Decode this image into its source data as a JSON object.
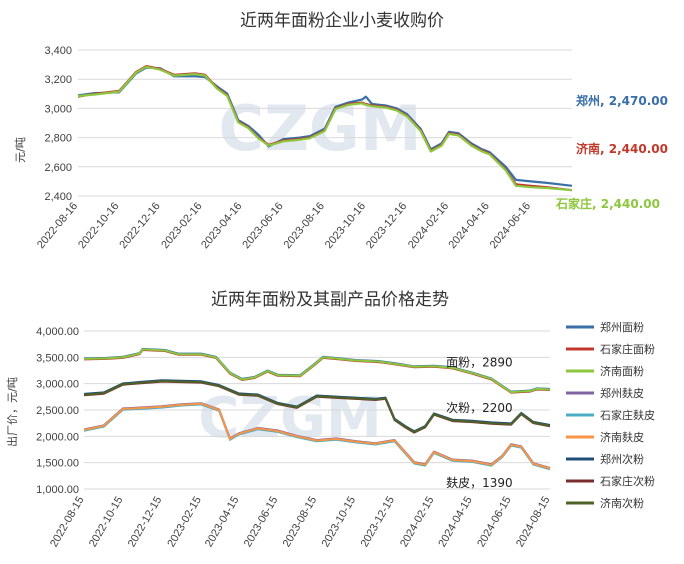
{
  "chart_data": [
    {
      "type": "line",
      "title": "近两年面粉企业小麦收购价",
      "ylabel": "元/吨",
      "ylim": [
        2400,
        3400
      ],
      "yticks": [
        "2,400",
        "2,600",
        "2,800",
        "3,000",
        "3,200",
        "3,400"
      ],
      "yticks_values": [
        2400,
        2600,
        2800,
        3000,
        3200,
        3400
      ],
      "categories": [
        "2022-08-16",
        "2022-10-16",
        "2022-12-16",
        "2023-02-16",
        "2023-04-16",
        "2023-06-16",
        "2023-08-16",
        "2023-10-16",
        "2023-12-16",
        "2024-02-16",
        "2024-04-16",
        "2024-06-16"
      ],
      "x_end": "2024-08-16",
      "watermark": "CZGM",
      "series": [
        {
          "name": "郑州",
          "end_label": "郑州, 2,470.00",
          "color": "#3a6fa8",
          "points": [
            [
              "2022-08-16",
              3090
            ],
            [
              "2022-09-10",
              3105
            ],
            [
              "2022-10-16",
              3110
            ],
            [
              "2022-11-10",
              3240
            ],
            [
              "2022-11-25",
              3280
            ],
            [
              "2022-12-16",
              3275
            ],
            [
              "2023-01-05",
              3220
            ],
            [
              "2023-02-05",
              3220
            ],
            [
              "2023-02-20",
              3215
            ],
            [
              "2023-03-10",
              3150
            ],
            [
              "2023-03-25",
              3100
            ],
            [
              "2023-04-10",
              2920
            ],
            [
              "2023-04-25",
              2880
            ],
            [
              "2023-05-10",
              2820
            ],
            [
              "2023-05-25",
              2740
            ],
            [
              "2023-06-16",
              2790
            ],
            [
              "2023-07-10",
              2800
            ],
            [
              "2023-07-25",
              2810
            ],
            [
              "2023-08-16",
              2860
            ],
            [
              "2023-09-01",
              3010
            ],
            [
              "2023-09-20",
              3040
            ],
            [
              "2023-10-10",
              3060
            ],
            [
              "2023-10-16",
              3080
            ],
            [
              "2023-10-25",
              3030
            ],
            [
              "2023-11-15",
              3020
            ],
            [
              "2023-12-01",
              3000
            ],
            [
              "2023-12-16",
              2960
            ],
            [
              "2024-01-05",
              2860
            ],
            [
              "2024-01-20",
              2720
            ],
            [
              "2024-02-05",
              2760
            ],
            [
              "2024-02-16",
              2840
            ],
            [
              "2024-03-01",
              2830
            ],
            [
              "2024-03-20",
              2760
            ],
            [
              "2024-04-05",
              2720
            ],
            [
              "2024-04-16",
              2700
            ],
            [
              "2024-05-10",
              2600
            ],
            [
              "2024-05-25",
              2510
            ],
            [
              "2024-06-16",
              2500
            ],
            [
              "2024-07-10",
              2490
            ],
            [
              "2024-08-16",
              2470
            ]
          ]
        },
        {
          "name": "济南",
          "end_label": "济南, 2,440.00",
          "color": "#c0392b",
          "points": [
            [
              "2022-08-16",
              3080
            ],
            [
              "2022-09-10",
              3100
            ],
            [
              "2022-10-16",
              3120
            ],
            [
              "2022-11-10",
              3250
            ],
            [
              "2022-11-25",
              3290
            ],
            [
              "2022-12-16",
              3270
            ],
            [
              "2023-01-05",
              3230
            ],
            [
              "2023-02-05",
              3240
            ],
            [
              "2023-02-20",
              3230
            ],
            [
              "2023-03-10",
              3140
            ],
            [
              "2023-03-25",
              3090
            ],
            [
              "2023-04-10",
              2910
            ],
            [
              "2023-04-25",
              2870
            ],
            [
              "2023-05-10",
              2800
            ],
            [
              "2023-05-25",
              2750
            ],
            [
              "2023-06-16",
              2780
            ],
            [
              "2023-07-10",
              2790
            ],
            [
              "2023-07-25",
              2800
            ],
            [
              "2023-08-16",
              2850
            ],
            [
              "2023-09-01",
              3000
            ],
            [
              "2023-09-20",
              3030
            ],
            [
              "2023-10-10",
              3040
            ],
            [
              "2023-10-16",
              3030
            ],
            [
              "2023-10-25",
              3020
            ],
            [
              "2023-11-15",
              3010
            ],
            [
              "2023-12-01",
              2990
            ],
            [
              "2023-12-16",
              2950
            ],
            [
              "2024-01-05",
              2850
            ],
            [
              "2024-01-20",
              2710
            ],
            [
              "2024-02-05",
              2750
            ],
            [
              "2024-02-16",
              2830
            ],
            [
              "2024-03-01",
              2820
            ],
            [
              "2024-03-20",
              2750
            ],
            [
              "2024-04-05",
              2710
            ],
            [
              "2024-04-16",
              2690
            ],
            [
              "2024-05-10",
              2580
            ],
            [
              "2024-05-25",
              2480
            ],
            [
              "2024-06-16",
              2470
            ],
            [
              "2024-07-10",
              2460
            ],
            [
              "2024-08-16",
              2440
            ]
          ]
        },
        {
          "name": "石家庄",
          "end_label": "石家庄, 2,440.00",
          "color": "#8dc63f",
          "points": [
            [
              "2022-08-16",
              3085
            ],
            [
              "2022-09-10",
              3095
            ],
            [
              "2022-10-16",
              3115
            ],
            [
              "2022-11-10",
              3245
            ],
            [
              "2022-11-25",
              3285
            ],
            [
              "2022-12-16",
              3265
            ],
            [
              "2023-01-05",
              3225
            ],
            [
              "2023-02-05",
              3235
            ],
            [
              "2023-02-20",
              3225
            ],
            [
              "2023-03-10",
              3135
            ],
            [
              "2023-03-25",
              3085
            ],
            [
              "2023-04-10",
              2905
            ],
            [
              "2023-04-25",
              2865
            ],
            [
              "2023-05-10",
              2795
            ],
            [
              "2023-05-25",
              2745
            ],
            [
              "2023-06-16",
              2775
            ],
            [
              "2023-07-10",
              2785
            ],
            [
              "2023-07-25",
              2795
            ],
            [
              "2023-08-16",
              2845
            ],
            [
              "2023-09-01",
              2995
            ],
            [
              "2023-09-20",
              3025
            ],
            [
              "2023-10-10",
              3035
            ],
            [
              "2023-10-16",
              3025
            ],
            [
              "2023-10-25",
              3015
            ],
            [
              "2023-11-15",
              3005
            ],
            [
              "2023-12-01",
              2985
            ],
            [
              "2023-12-16",
              2945
            ],
            [
              "2024-01-05",
              2845
            ],
            [
              "2024-01-20",
              2705
            ],
            [
              "2024-02-05",
              2745
            ],
            [
              "2024-02-16",
              2825
            ],
            [
              "2024-03-01",
              2815
            ],
            [
              "2024-03-20",
              2745
            ],
            [
              "2024-04-05",
              2705
            ],
            [
              "2024-04-16",
              2685
            ],
            [
              "2024-05-10",
              2575
            ],
            [
              "2024-05-25",
              2470
            ],
            [
              "2024-06-16",
              2460
            ],
            [
              "2024-07-10",
              2455
            ],
            [
              "2024-08-16",
              2440
            ]
          ]
        }
      ]
    },
    {
      "type": "line",
      "title": "近两年面粉及其副产品价格走势",
      "ylabel": "出厂价，元/吨",
      "ylim": [
        1000,
        4000
      ],
      "yticks": [
        "1,000.00",
        "1,500.00",
        "2,000.00",
        "2,500.00",
        "3,000.00",
        "3,500.00",
        "4,000.00"
      ],
      "yticks_values": [
        1000,
        1500,
        2000,
        2500,
        3000,
        3500,
        4000
      ],
      "categories": [
        "2022-08-15",
        "2022-10-15",
        "2022-12-15",
        "2023-02-15",
        "2023-04-15",
        "2023-06-15",
        "2023-08-15",
        "2023-10-15",
        "2023-12-15",
        "2024-02-15",
        "2024-04-15",
        "2024-06-15",
        "2024-08-15"
      ],
      "watermark": "CZGM",
      "annotations": [
        {
          "text": "面粉，2890",
          "date": "2024-03-05",
          "value": 3330
        },
        {
          "text": "次粉，2200",
          "date": "2024-03-05",
          "value": 2460
        },
        {
          "text": "麸皮，1390",
          "date": "2024-03-05",
          "value": 1040
        }
      ],
      "series": [
        {
          "name": "郑州面粉",
          "color": "#3a6fa8",
          "group": "flour",
          "offset": 10
        },
        {
          "name": "石家庄面粉",
          "color": "#c0392b",
          "group": "flour",
          "offset": -10
        },
        {
          "name": "济南面粉",
          "color": "#8dc63f",
          "group": "flour",
          "offset": 0
        },
        {
          "name": "郑州麸皮",
          "color": "#8064a2",
          "group": "bran",
          "offset": 10
        },
        {
          "name": "石家庄麸皮",
          "color": "#4bacc6",
          "group": "bran",
          "offset": -15
        },
        {
          "name": "济南麸皮",
          "color": "#f79646",
          "group": "bran",
          "offset": 0
        },
        {
          "name": "郑州次粉",
          "color": "#1f4e79",
          "group": "second",
          "offset": 15
        },
        {
          "name": "石家庄次粉",
          "color": "#7b2c2c",
          "group": "second",
          "offset": -10
        },
        {
          "name": "济南次粉",
          "color": "#4f6228",
          "group": "second",
          "offset": 0
        }
      ],
      "group_points": {
        "flour": [
          [
            "2022-08-15",
            3470
          ],
          [
            "2022-09-20",
            3480
          ],
          [
            "2022-10-15",
            3500
          ],
          [
            "2022-11-10",
            3570
          ],
          [
            "2022-11-15",
            3650
          ],
          [
            "2022-12-20",
            3630
          ],
          [
            "2023-01-10",
            3560
          ],
          [
            "2023-02-15",
            3560
          ],
          [
            "2023-03-10",
            3500
          ],
          [
            "2023-04-01",
            3200
          ],
          [
            "2023-04-20",
            3080
          ],
          [
            "2023-05-10",
            3120
          ],
          [
            "2023-05-30",
            3240
          ],
          [
            "2023-06-15",
            3160
          ],
          [
            "2023-07-20",
            3150
          ],
          [
            "2023-08-10",
            3350
          ],
          [
            "2023-08-25",
            3500
          ],
          [
            "2023-09-20",
            3470
          ],
          [
            "2023-10-15",
            3440
          ],
          [
            "2023-11-20",
            3420
          ],
          [
            "2023-12-15",
            3380
          ],
          [
            "2024-01-15",
            3320
          ],
          [
            "2024-02-15",
            3330
          ],
          [
            "2024-03-15",
            3300
          ],
          [
            "2024-04-15",
            3200
          ],
          [
            "2024-05-15",
            3090
          ],
          [
            "2024-06-01",
            2950
          ],
          [
            "2024-06-15",
            2840
          ],
          [
            "2024-07-15",
            2860
          ],
          [
            "2024-07-25",
            2900
          ],
          [
            "2024-08-15",
            2890
          ]
        ],
        "second": [
          [
            "2022-08-15",
            2790
          ],
          [
            "2022-09-15",
            2820
          ],
          [
            "2022-10-15",
            2990
          ],
          [
            "2022-11-15",
            3020
          ],
          [
            "2022-12-15",
            3050
          ],
          [
            "2023-01-15",
            3040
          ],
          [
            "2023-02-15",
            3030
          ],
          [
            "2023-03-15",
            2960
          ],
          [
            "2023-04-15",
            2800
          ],
          [
            "2023-05-15",
            2780
          ],
          [
            "2023-06-15",
            2620
          ],
          [
            "2023-07-15",
            2550
          ],
          [
            "2023-08-15",
            2760
          ],
          [
            "2023-09-15",
            2740
          ],
          [
            "2023-10-15",
            2720
          ],
          [
            "2023-11-15",
            2700
          ],
          [
            "2023-12-01",
            2720
          ],
          [
            "2023-12-15",
            2320
          ],
          [
            "2024-01-01",
            2180
          ],
          [
            "2024-01-15",
            2080
          ],
          [
            "2024-02-01",
            2180
          ],
          [
            "2024-02-15",
            2420
          ],
          [
            "2024-03-15",
            2300
          ],
          [
            "2024-04-15",
            2280
          ],
          [
            "2024-05-15",
            2250
          ],
          [
            "2024-06-15",
            2230
          ],
          [
            "2024-07-01",
            2430
          ],
          [
            "2024-07-20",
            2260
          ],
          [
            "2024-08-15",
            2200
          ]
        ],
        "bran": [
          [
            "2022-08-15",
            2120
          ],
          [
            "2022-09-15",
            2200
          ],
          [
            "2022-10-15",
            2520
          ],
          [
            "2022-11-15",
            2540
          ],
          [
            "2022-12-15",
            2560
          ],
          [
            "2023-01-15",
            2600
          ],
          [
            "2023-02-15",
            2620
          ],
          [
            "2023-03-15",
            2500
          ],
          [
            "2023-04-01",
            1950
          ],
          [
            "2023-04-15",
            2050
          ],
          [
            "2023-05-15",
            2150
          ],
          [
            "2023-06-15",
            2100
          ],
          [
            "2023-07-15",
            2000
          ],
          [
            "2023-08-15",
            1920
          ],
          [
            "2023-09-15",
            1950
          ],
          [
            "2023-10-15",
            1900
          ],
          [
            "2023-11-15",
            1860
          ],
          [
            "2023-12-15",
            1920
          ],
          [
            "2024-01-15",
            1500
          ],
          [
            "2024-02-01",
            1460
          ],
          [
            "2024-02-15",
            1700
          ],
          [
            "2024-03-15",
            1550
          ],
          [
            "2024-04-15",
            1530
          ],
          [
            "2024-05-15",
            1460
          ],
          [
            "2024-06-01",
            1620
          ],
          [
            "2024-06-15",
            1840
          ],
          [
            "2024-07-01",
            1800
          ],
          [
            "2024-07-20",
            1480
          ],
          [
            "2024-08-15",
            1390
          ]
        ]
      }
    }
  ]
}
